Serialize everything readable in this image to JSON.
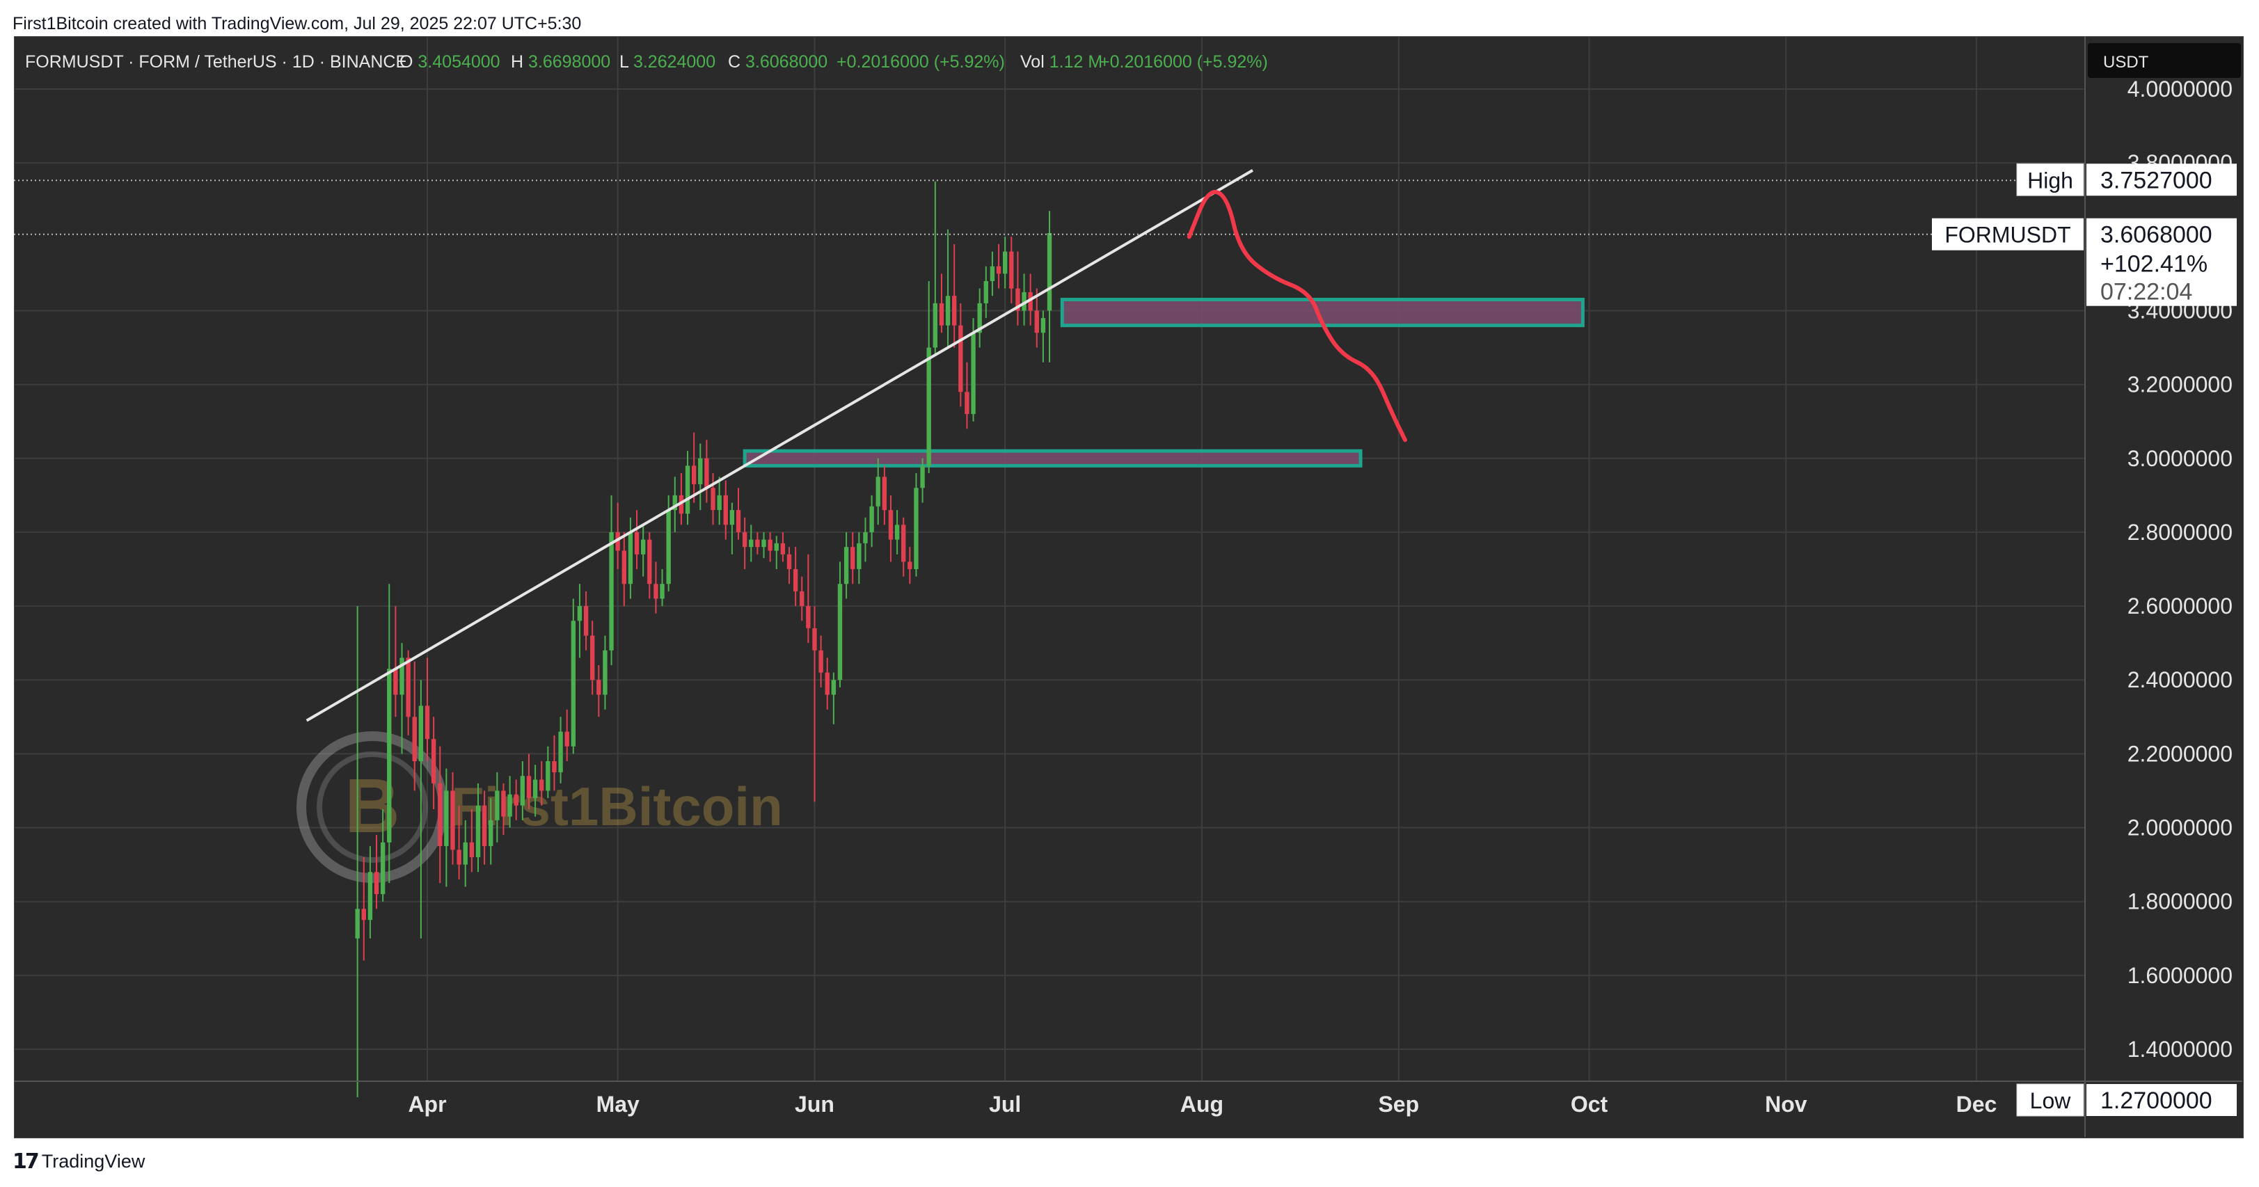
{
  "caption": "First1Bitcoin created with TradingView.com, Jul 29, 2025 22:07 UTC+5:30",
  "legend": {
    "symbol": "FORMUSDT · FORM / TetherUS · 1D · BINANCE",
    "o_label": "O",
    "o_value": "3.4054000",
    "h_label": "H",
    "h_value": "3.6698000",
    "l_label": "L",
    "l_value": "3.2624000",
    "c_label": "C",
    "c_value": "3.6068000",
    "change": "+0.2016000 (+5.92%)",
    "vol_label": "Vol",
    "vol_value": "1.12 M",
    "vol_change": "+0.2016000 (+5.92%)"
  },
  "currency_button": "USDT",
  "watermark": "First1Bitcoin",
  "footer_brand": "TradingView",
  "colors": {
    "background": "#2a2a2a",
    "grid": "#3d3d3d",
    "up": "#4caf50",
    "down": "#e0404f",
    "zone_fill": "#7d4d6e",
    "zone_border": "#1fa58e",
    "trendline": "#e6e6e6",
    "projection": "#f2394a",
    "legend_value": "#4caf50"
  },
  "chart_data": {
    "type": "candlestick",
    "title": "FORMUSDT · FORM / TetherUS · 1D · BINANCE",
    "x_ticks": [
      "Apr",
      "May",
      "Jun",
      "Jul",
      "Aug",
      "Sep",
      "Oct",
      "Nov",
      "Dec"
    ],
    "y_ticks": [
      "4.0000000",
      "3.8000000",
      "3.4000000",
      "3.2000000",
      "3.0000000",
      "2.8000000",
      "2.6000000",
      "2.4000000",
      "2.2000000",
      "2.0000000",
      "1.8000000",
      "1.6000000",
      "1.4000000"
    ],
    "ylim": [
      1.27,
      4.08
    ],
    "markers": {
      "high_label": "High",
      "high_value": "3.7527000",
      "last_label": "FORMUSDT",
      "last_value": "3.6068000",
      "last_change": "+102.41%",
      "countdown": "07:22:04",
      "low_label": "Low",
      "low_value": "1.2700000"
    },
    "trendline": [
      [
        "2025-03-13",
        2.29
      ],
      [
        "2025-08-09",
        3.78
      ]
    ],
    "zones": [
      {
        "from": "2025-05-21",
        "to": "2025-08-26",
        "low": 2.98,
        "high": 3.02
      },
      {
        "from": "2025-07-10",
        "to": "2025-09-30",
        "low": 3.36,
        "high": 3.43
      }
    ],
    "projection": [
      [
        "2025-07-30",
        3.6
      ],
      [
        "2025-08-02",
        3.73
      ],
      [
        "2025-08-05",
        3.71
      ],
      [
        "2025-08-07",
        3.56
      ],
      [
        "2025-08-12",
        3.49
      ],
      [
        "2025-08-18",
        3.45
      ],
      [
        "2025-08-20",
        3.36
      ],
      [
        "2025-08-23",
        3.28
      ],
      [
        "2025-08-28",
        3.24
      ],
      [
        "2025-08-31",
        3.12
      ],
      [
        "2025-09-02",
        3.05
      ]
    ],
    "candles": [
      {
        "d": "2025-03-21",
        "o": 1.7,
        "h": 2.6,
        "l": 1.27,
        "c": 1.78
      },
      {
        "d": "2025-03-22",
        "o": 1.78,
        "h": 1.92,
        "l": 1.64,
        "c": 1.75
      },
      {
        "d": "2025-03-23",
        "o": 1.75,
        "h": 1.95,
        "l": 1.7,
        "c": 1.88
      },
      {
        "d": "2025-03-24",
        "o": 1.88,
        "h": 1.98,
        "l": 1.78,
        "c": 1.82
      },
      {
        "d": "2025-03-25",
        "o": 1.82,
        "h": 2.05,
        "l": 1.8,
        "c": 1.96
      },
      {
        "d": "2025-03-26",
        "o": 1.96,
        "h": 2.66,
        "l": 1.85,
        "c": 2.43
      },
      {
        "d": "2025-03-27",
        "o": 2.43,
        "h": 2.6,
        "l": 2.3,
        "c": 2.36
      },
      {
        "d": "2025-03-28",
        "o": 2.36,
        "h": 2.5,
        "l": 2.2,
        "c": 2.46
      },
      {
        "d": "2025-03-29",
        "o": 2.46,
        "h": 2.48,
        "l": 2.25,
        "c": 2.3
      },
      {
        "d": "2025-03-30",
        "o": 2.3,
        "h": 2.45,
        "l": 2.1,
        "c": 2.18
      },
      {
        "d": "2025-03-31",
        "o": 2.18,
        "h": 2.4,
        "l": 1.7,
        "c": 2.33
      },
      {
        "d": "2025-04-01",
        "o": 2.33,
        "h": 2.46,
        "l": 2.18,
        "c": 2.24
      },
      {
        "d": "2025-04-02",
        "o": 2.24,
        "h": 2.3,
        "l": 2.05,
        "c": 2.12
      },
      {
        "d": "2025-04-03",
        "o": 2.12,
        "h": 2.22,
        "l": 1.85,
        "c": 1.95
      },
      {
        "d": "2025-04-04",
        "o": 1.95,
        "h": 2.16,
        "l": 1.84,
        "c": 2.1
      },
      {
        "d": "2025-04-05",
        "o": 2.1,
        "h": 2.15,
        "l": 1.9,
        "c": 1.94
      },
      {
        "d": "2025-04-06",
        "o": 1.94,
        "h": 2.06,
        "l": 1.86,
        "c": 1.9
      },
      {
        "d": "2025-04-07",
        "o": 1.9,
        "h": 2.02,
        "l": 1.84,
        "c": 1.96
      },
      {
        "d": "2025-04-08",
        "o": 1.96,
        "h": 2.05,
        "l": 1.88,
        "c": 1.92
      },
      {
        "d": "2025-04-09",
        "o": 1.92,
        "h": 2.12,
        "l": 1.88,
        "c": 2.06
      },
      {
        "d": "2025-04-10",
        "o": 2.06,
        "h": 2.1,
        "l": 1.9,
        "c": 1.95
      },
      {
        "d": "2025-04-11",
        "o": 1.95,
        "h": 2.08,
        "l": 1.9,
        "c": 2.02
      },
      {
        "d": "2025-04-12",
        "o": 2.02,
        "h": 2.15,
        "l": 1.96,
        "c": 2.1
      },
      {
        "d": "2025-04-13",
        "o": 2.1,
        "h": 2.12,
        "l": 1.98,
        "c": 2.03
      },
      {
        "d": "2025-04-14",
        "o": 2.03,
        "h": 2.14,
        "l": 2.0,
        "c": 2.09
      },
      {
        "d": "2025-04-15",
        "o": 2.09,
        "h": 2.13,
        "l": 2.02,
        "c": 2.06
      },
      {
        "d": "2025-04-16",
        "o": 2.06,
        "h": 2.18,
        "l": 2.02,
        "c": 2.14
      },
      {
        "d": "2025-04-17",
        "o": 2.14,
        "h": 2.2,
        "l": 2.05,
        "c": 2.08
      },
      {
        "d": "2025-04-18",
        "o": 2.08,
        "h": 2.17,
        "l": 2.03,
        "c": 2.13
      },
      {
        "d": "2025-04-19",
        "o": 2.13,
        "h": 2.18,
        "l": 2.06,
        "c": 2.1
      },
      {
        "d": "2025-04-20",
        "o": 2.1,
        "h": 2.22,
        "l": 2.08,
        "c": 2.18
      },
      {
        "d": "2025-04-21",
        "o": 2.18,
        "h": 2.25,
        "l": 2.1,
        "c": 2.15
      },
      {
        "d": "2025-04-22",
        "o": 2.15,
        "h": 2.3,
        "l": 2.12,
        "c": 2.26
      },
      {
        "d": "2025-04-23",
        "o": 2.26,
        "h": 2.32,
        "l": 2.18,
        "c": 2.22
      },
      {
        "d": "2025-04-24",
        "o": 2.22,
        "h": 2.62,
        "l": 2.2,
        "c": 2.56
      },
      {
        "d": "2025-04-25",
        "o": 2.56,
        "h": 2.66,
        "l": 2.46,
        "c": 2.6
      },
      {
        "d": "2025-04-26",
        "o": 2.6,
        "h": 2.64,
        "l": 2.48,
        "c": 2.52
      },
      {
        "d": "2025-04-27",
        "o": 2.52,
        "h": 2.56,
        "l": 2.36,
        "c": 2.4
      },
      {
        "d": "2025-04-28",
        "o": 2.4,
        "h": 2.44,
        "l": 2.3,
        "c": 2.36
      },
      {
        "d": "2025-04-29",
        "o": 2.36,
        "h": 2.52,
        "l": 2.32,
        "c": 2.48
      },
      {
        "d": "2025-04-30",
        "o": 2.48,
        "h": 2.9,
        "l": 2.44,
        "c": 2.8
      },
      {
        "d": "2025-05-01",
        "o": 2.8,
        "h": 2.88,
        "l": 2.7,
        "c": 2.75
      },
      {
        "d": "2025-05-02",
        "o": 2.75,
        "h": 2.8,
        "l": 2.6,
        "c": 2.66
      },
      {
        "d": "2025-05-03",
        "o": 2.66,
        "h": 2.84,
        "l": 2.62,
        "c": 2.8
      },
      {
        "d": "2025-05-04",
        "o": 2.8,
        "h": 2.86,
        "l": 2.7,
        "c": 2.74
      },
      {
        "d": "2025-05-05",
        "o": 2.74,
        "h": 2.82,
        "l": 2.68,
        "c": 2.78
      },
      {
        "d": "2025-05-06",
        "o": 2.78,
        "h": 2.8,
        "l": 2.62,
        "c": 2.66
      },
      {
        "d": "2025-05-07",
        "o": 2.66,
        "h": 2.72,
        "l": 2.58,
        "c": 2.62
      },
      {
        "d": "2025-05-08",
        "o": 2.62,
        "h": 2.7,
        "l": 2.6,
        "c": 2.66
      },
      {
        "d": "2025-05-09",
        "o": 2.66,
        "h": 2.9,
        "l": 2.64,
        "c": 2.86
      },
      {
        "d": "2025-05-10",
        "o": 2.86,
        "h": 2.95,
        "l": 2.8,
        "c": 2.9
      },
      {
        "d": "2025-05-11",
        "o": 2.9,
        "h": 2.96,
        "l": 2.82,
        "c": 2.85
      },
      {
        "d": "2025-05-12",
        "o": 2.85,
        "h": 3.02,
        "l": 2.82,
        "c": 2.98
      },
      {
        "d": "2025-05-13",
        "o": 2.98,
        "h": 3.07,
        "l": 2.88,
        "c": 2.93
      },
      {
        "d": "2025-05-14",
        "o": 2.93,
        "h": 3.04,
        "l": 2.86,
        "c": 3.0
      },
      {
        "d": "2025-05-15",
        "o": 3.0,
        "h": 3.05,
        "l": 2.88,
        "c": 2.92
      },
      {
        "d": "2025-05-16",
        "o": 2.92,
        "h": 2.96,
        "l": 2.82,
        "c": 2.86
      },
      {
        "d": "2025-05-17",
        "o": 2.86,
        "h": 2.95,
        "l": 2.82,
        "c": 2.9
      },
      {
        "d": "2025-05-18",
        "o": 2.9,
        "h": 2.94,
        "l": 2.78,
        "c": 2.82
      },
      {
        "d": "2025-05-19",
        "o": 2.82,
        "h": 2.88,
        "l": 2.74,
        "c": 2.86
      },
      {
        "d": "2025-05-20",
        "o": 2.86,
        "h": 2.92,
        "l": 2.78,
        "c": 2.8
      },
      {
        "d": "2025-05-21",
        "o": 2.8,
        "h": 2.84,
        "l": 2.7,
        "c": 2.76
      },
      {
        "d": "2025-05-22",
        "o": 2.76,
        "h": 2.82,
        "l": 2.72,
        "c": 2.78
      },
      {
        "d": "2025-05-23",
        "o": 2.78,
        "h": 2.8,
        "l": 2.74,
        "c": 2.76
      },
      {
        "d": "2025-05-24",
        "o": 2.76,
        "h": 2.8,
        "l": 2.73,
        "c": 2.78
      },
      {
        "d": "2025-05-25",
        "o": 2.78,
        "h": 2.8,
        "l": 2.72,
        "c": 2.75
      },
      {
        "d": "2025-05-26",
        "o": 2.75,
        "h": 2.79,
        "l": 2.7,
        "c": 2.77
      },
      {
        "d": "2025-05-27",
        "o": 2.77,
        "h": 2.8,
        "l": 2.72,
        "c": 2.74
      },
      {
        "d": "2025-05-28",
        "o": 2.74,
        "h": 2.76,
        "l": 2.66,
        "c": 2.7
      },
      {
        "d": "2025-05-29",
        "o": 2.7,
        "h": 2.76,
        "l": 2.6,
        "c": 2.64
      },
      {
        "d": "2025-05-30",
        "o": 2.64,
        "h": 2.68,
        "l": 2.56,
        "c": 2.6
      },
      {
        "d": "2025-05-31",
        "o": 2.6,
        "h": 2.74,
        "l": 2.5,
        "c": 2.54
      },
      {
        "d": "2025-06-01",
        "o": 2.54,
        "h": 2.6,
        "l": 2.07,
        "c": 2.48
      },
      {
        "d": "2025-06-02",
        "o": 2.48,
        "h": 2.52,
        "l": 2.38,
        "c": 2.42
      },
      {
        "d": "2025-06-03",
        "o": 2.42,
        "h": 2.46,
        "l": 2.32,
        "c": 2.36
      },
      {
        "d": "2025-06-04",
        "o": 2.36,
        "h": 2.42,
        "l": 2.28,
        "c": 2.4
      },
      {
        "d": "2025-06-05",
        "o": 2.4,
        "h": 2.72,
        "l": 2.38,
        "c": 2.66
      },
      {
        "d": "2025-06-06",
        "o": 2.66,
        "h": 2.8,
        "l": 2.62,
        "c": 2.76
      },
      {
        "d": "2025-06-07",
        "o": 2.76,
        "h": 2.8,
        "l": 2.66,
        "c": 2.7
      },
      {
        "d": "2025-06-08",
        "o": 2.7,
        "h": 2.8,
        "l": 2.66,
        "c": 2.77
      },
      {
        "d": "2025-06-09",
        "o": 2.77,
        "h": 2.84,
        "l": 2.72,
        "c": 2.8
      },
      {
        "d": "2025-06-10",
        "o": 2.8,
        "h": 2.9,
        "l": 2.76,
        "c": 2.87
      },
      {
        "d": "2025-06-11",
        "o": 2.87,
        "h": 3.0,
        "l": 2.82,
        "c": 2.95
      },
      {
        "d": "2025-06-12",
        "o": 2.95,
        "h": 2.98,
        "l": 2.82,
        "c": 2.86
      },
      {
        "d": "2025-06-13",
        "o": 2.86,
        "h": 2.9,
        "l": 2.72,
        "c": 2.78
      },
      {
        "d": "2025-06-14",
        "o": 2.78,
        "h": 2.86,
        "l": 2.74,
        "c": 2.82
      },
      {
        "d": "2025-06-15",
        "o": 2.82,
        "h": 2.84,
        "l": 2.68,
        "c": 2.72
      },
      {
        "d": "2025-06-16",
        "o": 2.72,
        "h": 2.76,
        "l": 2.66,
        "c": 2.7
      },
      {
        "d": "2025-06-17",
        "o": 2.7,
        "h": 2.96,
        "l": 2.68,
        "c": 2.92
      },
      {
        "d": "2025-06-18",
        "o": 2.92,
        "h": 3.0,
        "l": 2.88,
        "c": 2.98
      },
      {
        "d": "2025-06-19",
        "o": 2.98,
        "h": 3.48,
        "l": 2.96,
        "c": 3.3
      },
      {
        "d": "2025-06-20",
        "o": 3.3,
        "h": 3.75,
        "l": 3.28,
        "c": 3.42
      },
      {
        "d": "2025-06-21",
        "o": 3.42,
        "h": 3.5,
        "l": 3.34,
        "c": 3.36
      },
      {
        "d": "2025-06-22",
        "o": 3.36,
        "h": 3.62,
        "l": 3.3,
        "c": 3.44
      },
      {
        "d": "2025-06-23",
        "o": 3.44,
        "h": 3.58,
        "l": 3.3,
        "c": 3.36
      },
      {
        "d": "2025-06-24",
        "o": 3.36,
        "h": 3.42,
        "l": 3.14,
        "c": 3.18
      },
      {
        "d": "2025-06-25",
        "o": 3.18,
        "h": 3.26,
        "l": 3.08,
        "c": 3.12
      },
      {
        "d": "2025-06-26",
        "o": 3.12,
        "h": 3.38,
        "l": 3.1,
        "c": 3.34
      },
      {
        "d": "2025-06-27",
        "o": 3.34,
        "h": 3.46,
        "l": 3.3,
        "c": 3.42
      },
      {
        "d": "2025-06-28",
        "o": 3.42,
        "h": 3.52,
        "l": 3.38,
        "c": 3.48
      },
      {
        "d": "2025-06-29",
        "o": 3.48,
        "h": 3.56,
        "l": 3.44,
        "c": 3.52
      },
      {
        "d": "2025-06-30",
        "o": 3.52,
        "h": 3.58,
        "l": 3.46,
        "c": 3.5
      },
      {
        "d": "2025-07-01",
        "o": 3.5,
        "h": 3.6,
        "l": 3.46,
        "c": 3.56
      },
      {
        "d": "2025-07-02",
        "o": 3.56,
        "h": 3.6,
        "l": 3.42,
        "c": 3.46
      },
      {
        "d": "2025-07-03",
        "o": 3.46,
        "h": 3.56,
        "l": 3.36,
        "c": 3.4
      },
      {
        "d": "2025-07-04",
        "o": 3.4,
        "h": 3.5,
        "l": 3.36,
        "c": 3.45
      },
      {
        "d": "2025-07-05",
        "o": 3.45,
        "h": 3.5,
        "l": 3.36,
        "c": 3.4
      },
      {
        "d": "2025-07-06",
        "o": 3.4,
        "h": 3.46,
        "l": 3.3,
        "c": 3.34
      },
      {
        "d": "2025-07-07",
        "o": 3.34,
        "h": 3.4,
        "l": 3.26,
        "c": 3.38
      },
      {
        "d": "2025-07-08",
        "o": 3.4,
        "h": 3.67,
        "l": 3.26,
        "c": 3.61
      }
    ]
  }
}
